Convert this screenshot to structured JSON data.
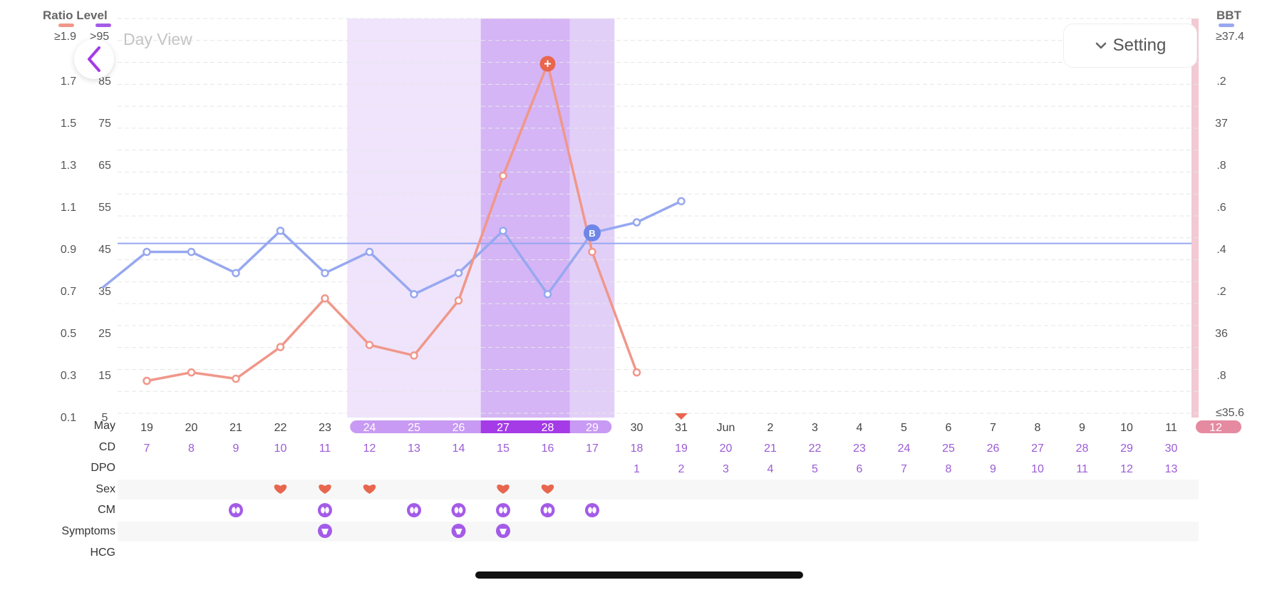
{
  "header": {
    "ratio_label": "Ratio Level",
    "bbt_label": "BBT",
    "ratio_top": "≥1.9",
    "level_top": ">95",
    "bbt_top": "≥37.4",
    "bbt_bottom": "≤35.6"
  },
  "nav": {
    "back_icon": "chevron-left-icon",
    "view_title": "Day View",
    "setting_label": "Setting"
  },
  "colors": {
    "ratio": "#f0978a",
    "bbt": "#97a8f0",
    "accent": "#a43be6",
    "period": "#f3c9d3",
    "sex": "#e8664e"
  },
  "axes": {
    "ratio_ticks": [
      "1.7",
      "1.5",
      "1.3",
      "1.1",
      "0.9",
      "0.7",
      "0.5",
      "0.3",
      "0.1"
    ],
    "level_ticks": [
      "85",
      "75",
      "65",
      "55",
      "45",
      "35",
      "25",
      "15",
      "5"
    ],
    "bbt_ticks": [
      ".2",
      "37",
      ".8",
      ".6",
      ".4",
      ".2",
      "36",
      ".8"
    ]
  },
  "rows": {
    "month_label": "May",
    "cd_label": "CD",
    "dpo_label": "DPO",
    "sex_label": "Sex",
    "cm_label": "CM",
    "symptoms_label": "Symptoms",
    "hcg_label": "HCG"
  },
  "chart_data": {
    "type": "line",
    "dates": [
      "19",
      "20",
      "21",
      "22",
      "23",
      "24",
      "25",
      "26",
      "27",
      "28",
      "29",
      "30",
      "31",
      "Jun",
      "2",
      "3",
      "4",
      "5",
      "6",
      "7",
      "8",
      "9",
      "10",
      "11",
      "12"
    ],
    "cd": [
      "7",
      "8",
      "9",
      "10",
      "11",
      "12",
      "13",
      "14",
      "15",
      "16",
      "17",
      "18",
      "19",
      "20",
      "21",
      "22",
      "23",
      "24",
      "25",
      "26",
      "27",
      "28",
      "29",
      "30",
      ""
    ],
    "dpo": [
      "",
      "",
      "",
      "",
      "",
      "",
      "",
      "",
      "",
      "",
      "",
      "1",
      "2",
      "3",
      "4",
      "5",
      "6",
      "7",
      "8",
      "9",
      "10",
      "11",
      "12",
      "13",
      ""
    ],
    "fertile_window": [
      "24",
      "25",
      "26",
      "27",
      "28",
      "29"
    ],
    "peak_days": [
      "27",
      "28"
    ],
    "ratio_series": {
      "name": "Ratio",
      "x": [
        "19",
        "20",
        "21",
        "22",
        "23",
        "24",
        "25",
        "26",
        "27",
        "28",
        "29",
        "30"
      ],
      "values": [
        0.25,
        0.29,
        0.26,
        0.41,
        0.64,
        0.42,
        0.37,
        0.63,
        1.22,
        1.75,
        0.86,
        0.29
      ]
    },
    "bbt_series": {
      "name": "BBT",
      "x": [
        "18",
        "19",
        "20",
        "21",
        "22",
        "23",
        "24",
        "25",
        "26",
        "27",
        "28",
        "29",
        "30",
        "31"
      ],
      "values": [
        36.19,
        36.36,
        36.36,
        36.26,
        36.46,
        36.26,
        36.36,
        36.16,
        36.26,
        36.46,
        36.16,
        36.45,
        36.5,
        36.6
      ]
    },
    "cover_line": 36.4,
    "peak_marker": {
      "day": "28",
      "symbol": "+"
    },
    "bbt_marker": {
      "day": "29",
      "symbol": "B"
    },
    "sex_days": [
      "22",
      "23",
      "24",
      "27",
      "28"
    ],
    "cm_days": [
      "21",
      "23",
      "25",
      "26",
      "27",
      "28",
      "29"
    ],
    "symptom_days": [
      "23",
      "26",
      "27"
    ],
    "ylim_ratio": [
      0.1,
      1.9
    ],
    "ylim_bbt": [
      35.6,
      37.4
    ],
    "grid": true
  }
}
